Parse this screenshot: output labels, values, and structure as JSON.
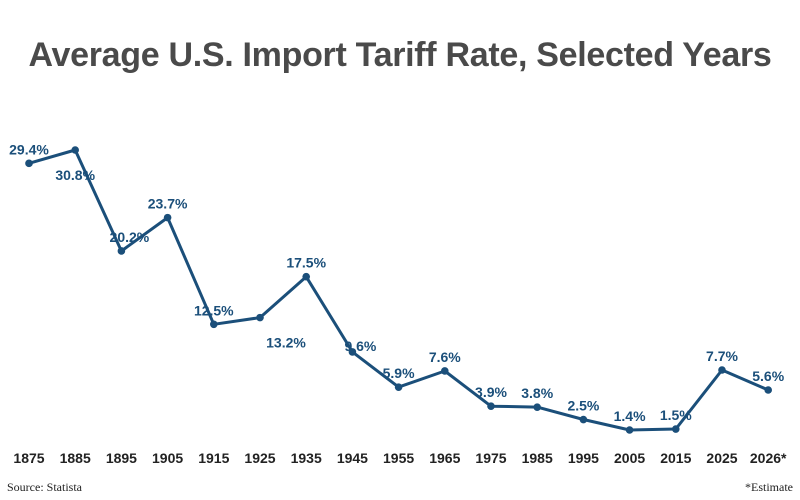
{
  "chart_data": {
    "type": "line",
    "title": "Average U.S. Import Tariff Rate, Selected Years",
    "xlabel": "",
    "ylabel": "",
    "categories": [
      "1875",
      "1885",
      "1895",
      "1905",
      "1915",
      "1925",
      "1935",
      "1945",
      "1955",
      "1965",
      "1975",
      "1985",
      "1995",
      "2005",
      "2015",
      "2025",
      "2026*"
    ],
    "series": [
      {
        "values": [
          29.4,
          30.8,
          20.2,
          23.7,
          12.5,
          13.2,
          17.5,
          9.6,
          5.9,
          7.6,
          3.9,
          3.8,
          2.5,
          1.4,
          1.5,
          7.7,
          5.6
        ],
        "labels": [
          "29.4%",
          "30.8%",
          "20.2%",
          "23.7%",
          "12.5%",
          "13.2%",
          "17.5%",
          "9.6%",
          "5.9%",
          "7.6%",
          "3.9%",
          "3.8%",
          "2.5%",
          "1.4%",
          "1.5%",
          "7.7%",
          "5.6%"
        ]
      }
    ],
    "ylim": [
      0,
      32
    ],
    "grid": false,
    "line_color": "#1b4f7a",
    "source": "Source: Statista",
    "note": "*Estimate"
  }
}
